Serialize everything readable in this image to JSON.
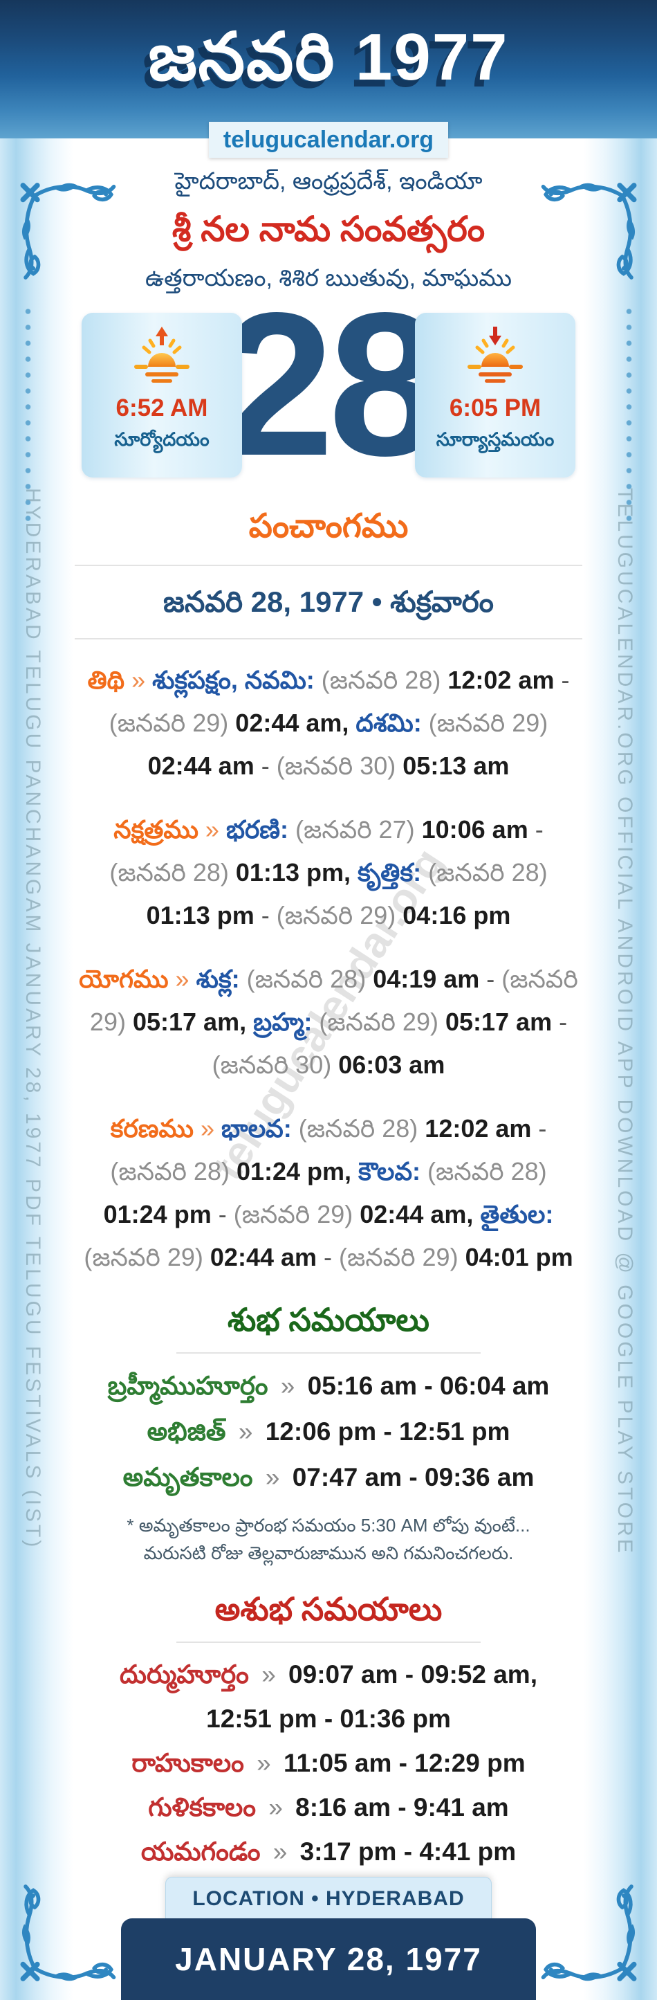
{
  "header": {
    "title": "జనవరి 1977",
    "site": "telugucalendar.org",
    "location_line": "హైదరాబాద్, ఆంధ్రప్రదేశ్, ఇండియా",
    "year_name": "శ్రీ నల నామ సంవత్సరం",
    "season_line": "ఉత్తరాయణం, శిశిర ఋతువు, మాఘము"
  },
  "day": {
    "number": "28",
    "sunrise_time": "6:52 AM",
    "sunrise_label": "సూర్యోదయం",
    "sunset_time": "6:05 PM",
    "sunset_label": "సూర్యాస్తమయం"
  },
  "watermark": "telugucalendar.org",
  "side_text": {
    "left": "HYDERABAD TELUGU PANCHANGAM JANUARY 28, 1977 PDF TELUGU FESTIVALS (IST)",
    "right": "TELUGUCALENDAR.ORG OFFICIAL ANDROID APP DOWNLOAD @ GOOGLE PLAY STORE"
  },
  "panchangam": {
    "heading": "పంచాంగము",
    "date_line": "జనవరి 28, 1977 • శుక్రవారం",
    "rows": [
      {
        "name": "tithi",
        "segments": [
          {
            "k": "lbl",
            "t": "తిథి"
          },
          {
            "k": "arr",
            "t": " » "
          },
          {
            "k": "sub",
            "t": "శుక్లపక్షం, నవమి:"
          },
          {
            "k": "par",
            "t": " (జనవరి 28) "
          },
          {
            "k": "tim",
            "t": "12:02 am"
          },
          {
            "k": "dsh",
            "t": " - "
          },
          {
            "k": "par",
            "t": "(జనవరి 29) "
          },
          {
            "k": "tim",
            "t": "02:44 am,"
          },
          {
            "k": "sub",
            "t": " దశమి:"
          },
          {
            "k": "par",
            "t": " (జనవరి 29) "
          },
          {
            "k": "tim",
            "t": "02:44 am"
          },
          {
            "k": "dsh",
            "t": " - "
          },
          {
            "k": "par",
            "t": "(జనవరి 30) "
          },
          {
            "k": "tim",
            "t": "05:13 am"
          }
        ]
      },
      {
        "name": "nakshatra",
        "segments": [
          {
            "k": "lbl",
            "t": "నక్షత్రము"
          },
          {
            "k": "arr",
            "t": " » "
          },
          {
            "k": "sub",
            "t": "భరణి:"
          },
          {
            "k": "par",
            "t": " (జనవరి 27) "
          },
          {
            "k": "tim",
            "t": "10:06 am"
          },
          {
            "k": "dsh",
            "t": " - "
          },
          {
            "k": "par",
            "t": "(జనవరి 28) "
          },
          {
            "k": "tim",
            "t": "01:13 pm,"
          },
          {
            "k": "sub",
            "t": " కృత్తిక:"
          },
          {
            "k": "par",
            "t": " (జనవరి 28) "
          },
          {
            "k": "tim",
            "t": "01:13 pm"
          },
          {
            "k": "dsh",
            "t": " - "
          },
          {
            "k": "par",
            "t": "(జనవరి 29) "
          },
          {
            "k": "tim",
            "t": "04:16 pm"
          }
        ]
      },
      {
        "name": "yoga",
        "segments": [
          {
            "k": "lbl",
            "t": "యోగము"
          },
          {
            "k": "arr",
            "t": " » "
          },
          {
            "k": "sub",
            "t": "శుక్ల:"
          },
          {
            "k": "par",
            "t": " (జనవరి 28) "
          },
          {
            "k": "tim",
            "t": "04:19 am"
          },
          {
            "k": "dsh",
            "t": " - "
          },
          {
            "k": "par",
            "t": "(జనవరి 29) "
          },
          {
            "k": "tim",
            "t": "05:17 am,"
          },
          {
            "k": "sub",
            "t": " బ్రహ్మ:"
          },
          {
            "k": "par",
            "t": " (జనవరి 29) "
          },
          {
            "k": "tim",
            "t": "05:17 am"
          },
          {
            "k": "dsh",
            "t": " - "
          },
          {
            "k": "par",
            "t": "(జనవరి 30) "
          },
          {
            "k": "tim",
            "t": "06:03 am"
          }
        ]
      },
      {
        "name": "karana",
        "segments": [
          {
            "k": "lbl",
            "t": "కరణము"
          },
          {
            "k": "arr",
            "t": " » "
          },
          {
            "k": "sub",
            "t": "భాలవ:"
          },
          {
            "k": "par",
            "t": " (జనవరి 28) "
          },
          {
            "k": "tim",
            "t": "12:02 am"
          },
          {
            "k": "dsh",
            "t": " - "
          },
          {
            "k": "par",
            "t": "(జనవరి 28) "
          },
          {
            "k": "tim",
            "t": "01:24 pm,"
          },
          {
            "k": "sub",
            "t": " కౌలవ:"
          },
          {
            "k": "par",
            "t": " (జనవరి 28) "
          },
          {
            "k": "tim",
            "t": "01:24 pm"
          },
          {
            "k": "dsh",
            "t": " - "
          },
          {
            "k": "par",
            "t": "(జనవరి 29) "
          },
          {
            "k": "tim",
            "t": "02:44 am,"
          },
          {
            "k": "sub",
            "t": " తైతుల:"
          },
          {
            "k": "par",
            "t": " (జనవరి 29) "
          },
          {
            "k": "tim",
            "t": "02:44 am"
          },
          {
            "k": "dsh",
            "t": " - "
          },
          {
            "k": "par",
            "t": "(జనవరి 29) "
          },
          {
            "k": "tim",
            "t": "04:01 pm"
          }
        ]
      }
    ]
  },
  "shubha": {
    "heading": "శుభ సమయాలు",
    "rows": [
      {
        "label": "బ్రహ్మీముహూర్తం",
        "sep": "»",
        "value": "05:16 am - 06:04 am"
      },
      {
        "label": "అభిజిత్",
        "sep": "»",
        "value": "12:06 pm - 12:51 pm"
      },
      {
        "label": "అమృతకాలం",
        "sep": "»",
        "value": "07:47 am - 09:36 am"
      }
    ],
    "note": "* అమృతకాలం ప్రారంభ సమయం 5:30 AM లోపు వుంటే... మరుసటి రోజు తెల్లవారుజామున అని గమనించగలరు."
  },
  "ashubha": {
    "heading": "అశుభ సమయాలు",
    "rows": [
      {
        "label": "దుర్ముహూర్తం",
        "sep": "»",
        "value": "09:07 am - 09:52 am,",
        "value2": "12:51 pm - 01:36 pm"
      },
      {
        "label": "రాహుకాలం",
        "sep": "»",
        "value": "11:05 am - 12:29 pm"
      },
      {
        "label": "గుళికకాలం",
        "sep": "»",
        "value": "8:16 am - 9:41 am"
      },
      {
        "label": "యమగండం",
        "sep": "»",
        "value": "3:17 pm - 4:41 pm"
      }
    ]
  },
  "footer": {
    "location": "LOCATION • HYDERABAD",
    "date": "JANUARY 28, 1977"
  },
  "colors": {
    "header_navy": "#16375c",
    "accent_orange": "#f26c1a",
    "accent_blue": "#2156a5",
    "accent_red": "#d32b20",
    "accent_green": "#1a671a",
    "day_navy": "#25527e",
    "strip_blue": "#a9d6ee",
    "flourish_blue": "#2e86c1"
  }
}
